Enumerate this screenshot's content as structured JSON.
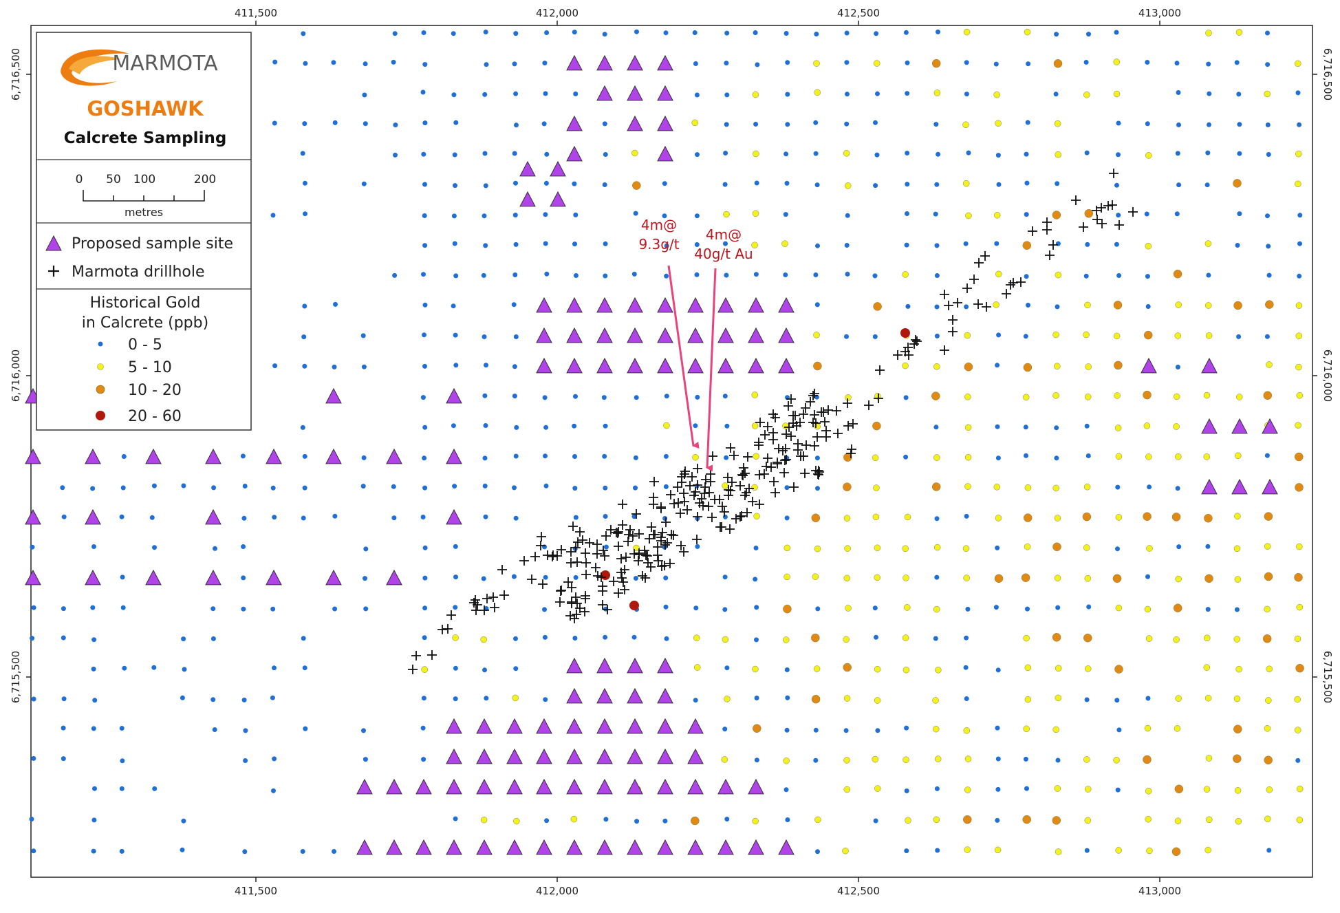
{
  "map": {
    "x_ticks": [
      "411,500",
      "412,000",
      "412,500",
      "413,000"
    ],
    "y_ticks": [
      "6,716,500",
      "6,716,000",
      "6,715,500"
    ]
  },
  "legend": {
    "logo_text": "MARMOTA",
    "project": "GOSHAWK",
    "subtitle": "Calcrete Sampling",
    "scale_labels": [
      "0",
      "50",
      "100",
      "200"
    ],
    "scale_unit": "metres",
    "symbols": [
      {
        "label": "Proposed sample site",
        "icon": "purple-triangle"
      },
      {
        "label": "Marmota drillhole",
        "icon": "black-cross"
      }
    ],
    "gold_title_lines": [
      "Historical Gold",
      "in Calcrete (ppb)"
    ],
    "gold_classes": [
      {
        "label": "0 - 5",
        "color": "#1f6fd6"
      },
      {
        "label": "5 - 10",
        "color": "#f4f21a"
      },
      {
        "label": "10 - 20",
        "color": "#e08a14"
      },
      {
        "label": "20 - 60",
        "color": "#b0180e"
      }
    ]
  },
  "annotations": [
    {
      "lines": [
        "4m@",
        "9.3g/t"
      ]
    },
    {
      "lines": [
        "4m@",
        "40g/t Au"
      ]
    }
  ],
  "colors": {
    "triangle": "#b044e8",
    "arrow": "#e8437a",
    "annotation": "#c0161e",
    "logo_orange": "#ee7d11"
  }
}
